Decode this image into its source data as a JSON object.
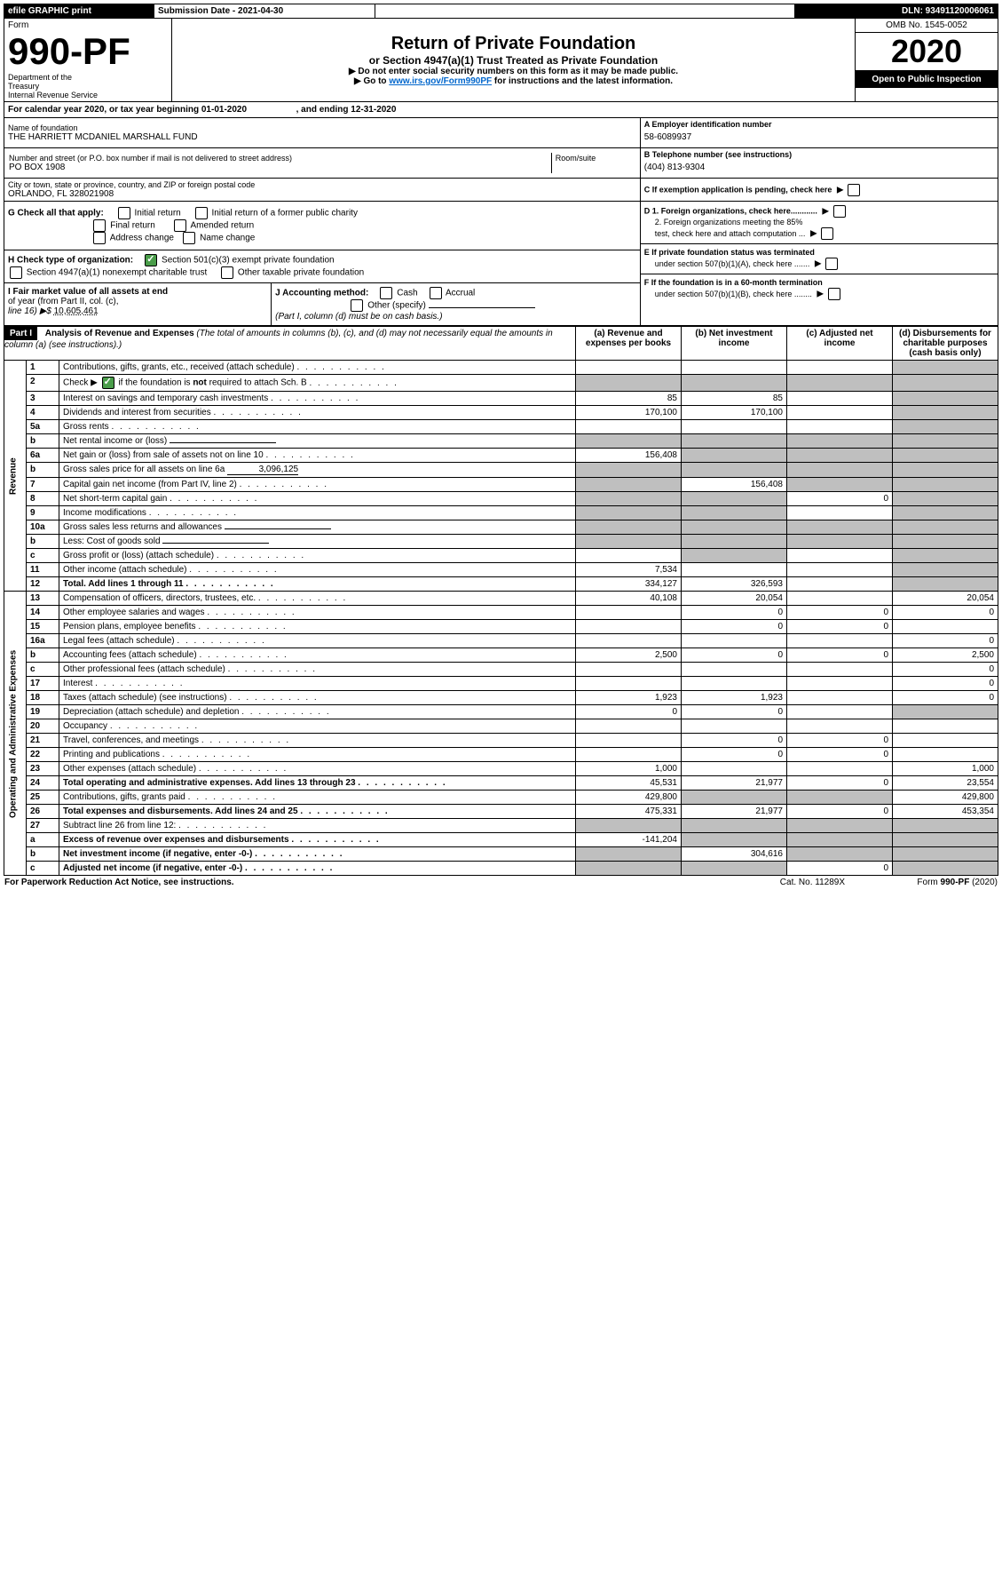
{
  "header_bar": {
    "efile": "efile GRAPHIC print",
    "submission_label": "Submission Date - 2021-04-30",
    "dln": "DLN: 93491120006061"
  },
  "form_header": {
    "form_label": "Form",
    "form_number": "990-PF",
    "dept1": "Department of the",
    "dept2": "Treasury",
    "dept3": "Internal Revenue Service",
    "title": "Return of Private Foundation",
    "subtitle": "or Section 4947(a)(1) Trust Treated as Private Foundation",
    "instr1": "▶ Do not enter social security numbers on this form as it may be made public.",
    "instr2_pre": "▶ Go to ",
    "instr2_link": "www.irs.gov/Form990PF",
    "instr2_post": " for instructions and the latest information.",
    "omb": "OMB No. 1545-0052",
    "year": "2020",
    "open": "Open to Public Inspection"
  },
  "calendar": {
    "text_pre": "For calendar year 2020, or tax year beginning ",
    "begin": "01-01-2020",
    "mid": " , and ending ",
    "end": "12-31-2020"
  },
  "id_block": {
    "name_label": "Name of foundation",
    "name": "THE HARRIETT MCDANIEL MARSHALL FUND",
    "addr_label": "Number and street (or P.O. box number if mail is not delivered to street address)",
    "room_label": "Room/suite",
    "addr": "PO BOX 1908",
    "city_label": "City or town, state or province, country, and ZIP or foreign postal code",
    "city": "ORLANDO, FL  328021908",
    "a_label": "A Employer identification number",
    "a_val": "58-6089937",
    "b_label": "B Telephone number (see instructions)",
    "b_val": "(404) 813-9304",
    "c_label": "C  If exemption application is pending, check here",
    "d1": "D 1. Foreign organizations, check here............",
    "d2a": "2. Foreign organizations meeting the 85%",
    "d2b": "test, check here and attach computation ...",
    "e1": "E  If private foundation status was terminated",
    "e2": "under section 507(b)(1)(A), check here .......",
    "f1": "F  If the foundation is in a 60-month termination",
    "f2": "under section 507(b)(1)(B), check here ........"
  },
  "g": {
    "label": "G Check all that apply:",
    "opts": [
      "Initial return",
      "Initial return of a former public charity",
      "Final return",
      "Amended return",
      "Address change",
      "Name change"
    ]
  },
  "h": {
    "label": "H Check type of organization:",
    "opt1": "Section 501(c)(3) exempt private foundation",
    "opt2": "Section 4947(a)(1) nonexempt charitable trust",
    "opt3": "Other taxable private foundation"
  },
  "i": {
    "label1": "I Fair market value of all assets at end",
    "label2": "of year (from Part II, col. (c),",
    "label3_pre": "line 16) ▶$  ",
    "value": "10,605,461"
  },
  "j": {
    "label": "J Accounting method:",
    "cash": "Cash",
    "accrual": "Accrual",
    "other": "Other (specify)",
    "note": "(Part I, column (d) must be on cash basis.)"
  },
  "part1": {
    "tab": "Part I",
    "title": "Analysis of Revenue and Expenses",
    "sub1": " (The total of amounts in columns (b), (c), and (d) may not necessarily equal the amounts in column (a) (see instructions).)",
    "cols": {
      "a": "(a)   Revenue and expenses per books",
      "b": "(b)   Net investment income",
      "c": "(c)   Adjusted net income",
      "d": "(d)   Disbursements for charitable purposes (cash basis only)"
    },
    "vert_rev": "Revenue",
    "vert_exp": "Operating and Administrative Expenses"
  },
  "rows": [
    {
      "n": "1",
      "t": "Contributions, gifts, grants, etc., received (attach schedule)",
      "a": "",
      "b": "",
      "c": "",
      "d": "",
      "greyD": true
    },
    {
      "n": "2",
      "t": "Check ▶ ☑ if the foundation is not required to attach Sch. B",
      "a": "",
      "b": "",
      "c": "",
      "d": "",
      "greyA": true,
      "greyB": true,
      "greyC": true,
      "greyD": true,
      "special": "check"
    },
    {
      "n": "3",
      "t": "Interest on savings and temporary cash investments",
      "a": "85",
      "b": "85",
      "c": "",
      "d": "",
      "greyD": true
    },
    {
      "n": "4",
      "t": "Dividends and interest from securities",
      "a": "170,100",
      "b": "170,100",
      "c": "",
      "d": "",
      "greyD": true
    },
    {
      "n": "5a",
      "t": "Gross rents",
      "a": "",
      "b": "",
      "c": "",
      "d": "",
      "greyD": true
    },
    {
      "n": "b",
      "t": "Net rental income or (loss)",
      "a": "",
      "b": "",
      "c": "",
      "d": "",
      "greyA": true,
      "greyB": true,
      "greyC": true,
      "greyD": true,
      "uline": true
    },
    {
      "n": "6a",
      "t": "Net gain or (loss) from sale of assets not on line 10",
      "a": "156,408",
      "b": "",
      "c": "",
      "d": "",
      "greyB": true,
      "greyC": true,
      "greyD": true
    },
    {
      "n": "b",
      "t": "Gross sales price for all assets on line 6a",
      "a": "",
      "b": "",
      "c": "",
      "d": "",
      "greyA": true,
      "greyB": true,
      "greyC": true,
      "greyD": true,
      "val6b": "3,096,125"
    },
    {
      "n": "7",
      "t": "Capital gain net income (from Part IV, line 2)",
      "a": "",
      "b": "156,408",
      "c": "",
      "d": "",
      "greyA": true,
      "greyC": true,
      "greyD": true
    },
    {
      "n": "8",
      "t": "Net short-term capital gain",
      "a": "",
      "b": "",
      "c": "0",
      "d": "",
      "greyA": true,
      "greyB": true,
      "greyD": true
    },
    {
      "n": "9",
      "t": "Income modifications",
      "a": "",
      "b": "",
      "c": "",
      "d": "",
      "greyA": true,
      "greyB": true,
      "greyD": true
    },
    {
      "n": "10a",
      "t": "Gross sales less returns and allowances",
      "a": "",
      "b": "",
      "c": "",
      "d": "",
      "greyA": true,
      "greyB": true,
      "greyC": true,
      "greyD": true,
      "uline": true
    },
    {
      "n": "b",
      "t": "Less: Cost of goods sold",
      "a": "",
      "b": "",
      "c": "",
      "d": "",
      "greyA": true,
      "greyB": true,
      "greyC": true,
      "greyD": true,
      "uline": true
    },
    {
      "n": "c",
      "t": "Gross profit or (loss) (attach schedule)",
      "a": "",
      "b": "",
      "c": "",
      "d": "",
      "greyB": true,
      "greyD": true
    },
    {
      "n": "11",
      "t": "Other income (attach schedule)",
      "a": "7,534",
      "b": "",
      "c": "",
      "d": "",
      "greyD": true
    },
    {
      "n": "12",
      "t": "Total. Add lines 1 through 11",
      "a": "334,127",
      "b": "326,593",
      "c": "",
      "d": "",
      "bold": true,
      "greyD": true
    }
  ],
  "exp_rows": [
    {
      "n": "13",
      "t": "Compensation of officers, directors, trustees, etc.",
      "a": "40,108",
      "b": "20,054",
      "c": "",
      "d": "20,054"
    },
    {
      "n": "14",
      "t": "Other employee salaries and wages",
      "a": "",
      "b": "0",
      "c": "0",
      "d": "0"
    },
    {
      "n": "15",
      "t": "Pension plans, employee benefits",
      "a": "",
      "b": "0",
      "c": "0",
      "d": ""
    },
    {
      "n": "16a",
      "t": "Legal fees (attach schedule)",
      "a": "",
      "b": "",
      "c": "",
      "d": "0"
    },
    {
      "n": "b",
      "t": "Accounting fees (attach schedule)",
      "a": "2,500",
      "b": "0",
      "c": "0",
      "d": "2,500"
    },
    {
      "n": "c",
      "t": "Other professional fees (attach schedule)",
      "a": "",
      "b": "",
      "c": "",
      "d": "0"
    },
    {
      "n": "17",
      "t": "Interest",
      "a": "",
      "b": "",
      "c": "",
      "d": "0"
    },
    {
      "n": "18",
      "t": "Taxes (attach schedule) (see instructions)",
      "a": "1,923",
      "b": "1,923",
      "c": "",
      "d": "0"
    },
    {
      "n": "19",
      "t": "Depreciation (attach schedule) and depletion",
      "a": "0",
      "b": "0",
      "c": "",
      "d": "",
      "greyD": true
    },
    {
      "n": "20",
      "t": "Occupancy",
      "a": "",
      "b": "",
      "c": "",
      "d": ""
    },
    {
      "n": "21",
      "t": "Travel, conferences, and meetings",
      "a": "",
      "b": "0",
      "c": "0",
      "d": ""
    },
    {
      "n": "22",
      "t": "Printing and publications",
      "a": "",
      "b": "0",
      "c": "0",
      "d": ""
    },
    {
      "n": "23",
      "t": "Other expenses (attach schedule)",
      "a": "1,000",
      "b": "",
      "c": "",
      "d": "1,000"
    },
    {
      "n": "24",
      "t": "Total operating and administrative expenses. Add lines 13 through 23",
      "a": "45,531",
      "b": "21,977",
      "c": "0",
      "d": "23,554",
      "bold": true
    },
    {
      "n": "25",
      "t": "Contributions, gifts, grants paid",
      "a": "429,800",
      "b": "",
      "c": "",
      "d": "429,800",
      "greyB": true,
      "greyC": true
    },
    {
      "n": "26",
      "t": "Total expenses and disbursements. Add lines 24 and 25",
      "a": "475,331",
      "b": "21,977",
      "c": "0",
      "d": "453,354",
      "bold": true
    },
    {
      "n": "27",
      "t": "Subtract line 26 from line 12:",
      "a": "",
      "b": "",
      "c": "",
      "d": "",
      "greyA": true,
      "greyB": true,
      "greyC": true,
      "greyD": true
    },
    {
      "n": "a",
      "t": "Excess of revenue over expenses and disbursements",
      "a": "-141,204",
      "b": "",
      "c": "",
      "d": "",
      "bold": true,
      "greyB": true,
      "greyC": true,
      "greyD": true
    },
    {
      "n": "b",
      "t": "Net investment income (if negative, enter -0-)",
      "a": "",
      "b": "304,616",
      "c": "",
      "d": "",
      "bold": true,
      "greyA": true,
      "greyC": true,
      "greyD": true
    },
    {
      "n": "c",
      "t": "Adjusted net income (if negative, enter -0-)",
      "a": "",
      "b": "",
      "c": "0",
      "d": "",
      "bold": true,
      "greyA": true,
      "greyB": true,
      "greyD": true
    }
  ],
  "footer": {
    "left": "For Paperwork Reduction Act Notice, see instructions.",
    "mid": "Cat. No. 11289X",
    "right": "Form 990-PF (2020)"
  }
}
